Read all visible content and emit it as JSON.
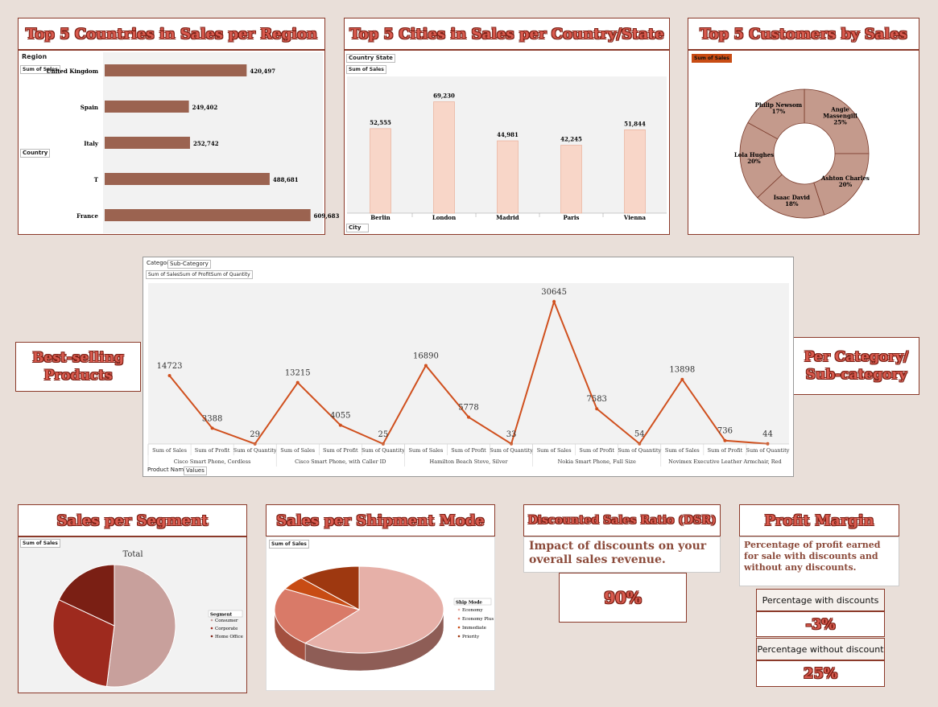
{
  "titles": {
    "countries": "Top 5 Countries in Sales per Region",
    "cities": "Top 5 Cities in Sales per Country/State",
    "customers": "Top 5 Customers by Sales",
    "best_selling": "Best-selling Products",
    "per_category": "Per Category/ Sub-category",
    "segment": "Sales per Segment",
    "shipment": "Sales per Shipment Mode",
    "dsr": "Discounted Sales Ratio (DSR)",
    "profit_margin": "Profit Margin"
  },
  "tags": {
    "region": "Region",
    "sum_of_sales": "Sum of Sales",
    "country": "Country",
    "country_state": "Country State",
    "city": "City",
    "category": "Category",
    "sub_category": "Sub-Category",
    "line_values_header": "Sum of SalesSum of ProfitSum of Quantity",
    "product_name": "Product Name",
    "values": "Values",
    "segment_total": "Total",
    "segment_legend_title": "Segment",
    "ship_mode": "Ship Mode"
  },
  "dsr": {
    "description": "Impact of discounts on your overall sales revenue.",
    "value": "90%"
  },
  "profit_margin": {
    "description": "Percentage of profit earned for sale with discounts and without any discounts.",
    "with_label": "Percentage with discounts",
    "with_value": "-3%",
    "without_label": "Percentage without discount",
    "without_value": "25%"
  },
  "chart_data": [
    {
      "id": "countries",
      "type": "bar",
      "orientation": "horizontal",
      "categories": [
        "United Kingdom",
        "Spain",
        "Italy",
        "T",
        "France"
      ],
      "values": [
        420497,
        249402,
        252742,
        488681,
        609683
      ],
      "labels": [
        "420,497",
        "249,402",
        "252,742",
        "488,681",
        "609,683"
      ],
      "color": "#9b6350"
    },
    {
      "id": "cities",
      "type": "bar",
      "categories": [
        "Berlin",
        "London",
        "Madrid",
        "Paris",
        "Vienna"
      ],
      "values": [
        52555,
        69230,
        44981,
        42245,
        51844
      ],
      "labels": [
        "52,555",
        "69,230",
        "44,981",
        "42,245",
        "51,844"
      ],
      "color": "#f8d6c8"
    },
    {
      "id": "customers",
      "type": "pie",
      "donut": true,
      "categories": [
        "Angie Massengill",
        "Ashton Charles",
        "Isaac David",
        "Lola Hughes",
        "Philip Newsom"
      ],
      "values": [
        25,
        20,
        18,
        20,
        17
      ],
      "labels": [
        "25%",
        "20%",
        "18%",
        "20%",
        "17%"
      ],
      "color": "#c49a8c"
    },
    {
      "id": "best_selling",
      "type": "line",
      "groups": [
        "Cisco Smart Phone, Cordless",
        "Cisco Smart Phone, with Caller ID",
        "Hamilton Beach Stove, Silver",
        "Nokia Smart Phone, Full Size",
        "Novimex Executive Leather Armchair, Red"
      ],
      "measures": [
        "Sum of Sales",
        "Sum of Profit",
        "Sum of Quantity"
      ],
      "values": [
        14723,
        3388,
        29,
        13215,
        4055,
        25,
        16890,
        5778,
        33,
        30645,
        7583,
        54,
        13898,
        736,
        44
      ],
      "color": "#d0501e"
    },
    {
      "id": "segment",
      "type": "pie",
      "categories": [
        "Consumer",
        "Corporate",
        "Home Office"
      ],
      "values": [
        52,
        30,
        18
      ],
      "colors": [
        "#c8a09c",
        "#9e2a1e",
        "#7a1f14"
      ]
    },
    {
      "id": "shipment",
      "type": "pie",
      "three_d": true,
      "categories": [
        "Economy",
        "Economy Plus",
        "Immediate",
        "Priority"
      ],
      "values": [
        61,
        22,
        5,
        12
      ],
      "colors": [
        "#e6b0a8",
        "#d97a68",
        "#c84c14",
        "#9e3810"
      ]
    }
  ]
}
